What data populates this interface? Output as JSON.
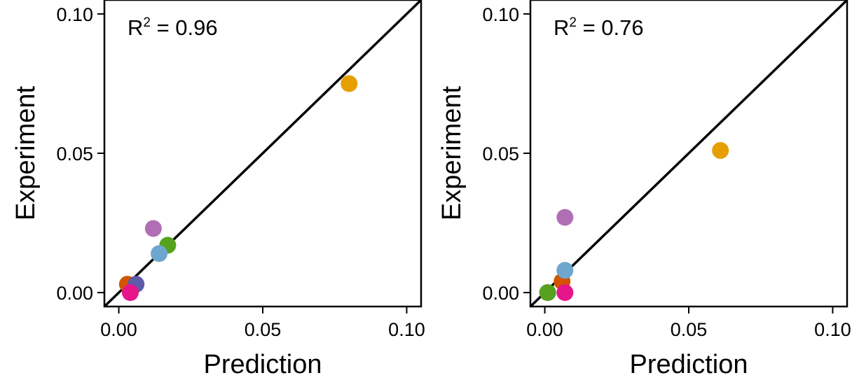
{
  "chart_data": [
    {
      "type": "scatter",
      "xlabel": "Prediction",
      "ylabel": "Experiment",
      "xlim": [
        -0.005,
        0.105
      ],
      "ylim": [
        -0.005,
        0.105
      ],
      "x_ticks": [
        "0.00",
        "0.05",
        "0.10"
      ],
      "y_ticks": [
        "0.00",
        "0.05",
        "0.10"
      ],
      "annotation": {
        "prefix": "R",
        "sup": "2",
        "rest": " = 0.96"
      },
      "reference_line": "y = x",
      "grid": false,
      "points": [
        {
          "x": 0.08,
          "y": 0.075,
          "color": "#E69F00"
        },
        {
          "x": 0.012,
          "y": 0.023,
          "color": "#B06FB5"
        },
        {
          "x": 0.017,
          "y": 0.017,
          "color": "#56A21E"
        },
        {
          "x": 0.014,
          "y": 0.014,
          "color": "#6FA6D0"
        },
        {
          "x": 0.003,
          "y": 0.003,
          "color": "#D35400"
        },
        {
          "x": 0.006,
          "y": 0.003,
          "color": "#5E5BA8"
        },
        {
          "x": 0.004,
          "y": 0.0,
          "color": "#E7158A"
        }
      ]
    },
    {
      "type": "scatter",
      "xlabel": "Prediction",
      "ylabel": "Experiment",
      "xlim": [
        -0.005,
        0.105
      ],
      "ylim": [
        -0.005,
        0.105
      ],
      "x_ticks": [
        "0.00",
        "0.05",
        "0.10"
      ],
      "y_ticks": [
        "0.00",
        "0.05",
        "0.10"
      ],
      "annotation": {
        "prefix": "R",
        "sup": "2",
        "rest": " = 0.76"
      },
      "reference_line": "y = x",
      "grid": false,
      "points": [
        {
          "x": 0.061,
          "y": 0.051,
          "color": "#E69F00"
        },
        {
          "x": 0.007,
          "y": 0.027,
          "color": "#B06FB5"
        },
        {
          "x": 0.006,
          "y": 0.004,
          "color": "#D35400"
        },
        {
          "x": 0.007,
          "y": 0.008,
          "color": "#6FA6D0"
        },
        {
          "x": 0.007,
          "y": 0.0,
          "color": "#E7158A"
        },
        {
          "x": 0.001,
          "y": 0.0,
          "color": "#5E5BA8"
        },
        {
          "x": 0.001,
          "y": 0.0,
          "color": "#56A21E"
        }
      ]
    }
  ]
}
